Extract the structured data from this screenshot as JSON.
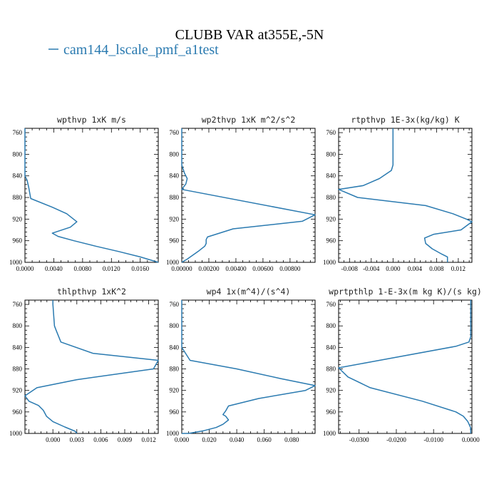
{
  "figure": {
    "title": "CLUBB VAR at355E,-5N",
    "legend_label": "cam144_lscale_pmf_a1test",
    "line_color": "#2a7ab0"
  },
  "chart_data": [
    {
      "type": "line",
      "title": "wpthvp  1xK m/s",
      "xlim": [
        0,
        0.0185
      ],
      "ylim": [
        1000,
        752
      ],
      "xticks": [
        0.0,
        0.004,
        0.008,
        0.012,
        0.016
      ],
      "xtick_labels": [
        "0.0000",
        "0.0040",
        "0.0080",
        "0.0120",
        "0.0160"
      ],
      "yticks": [
        760,
        800,
        840,
        880,
        920,
        960,
        1000
      ],
      "series": [
        {
          "x": [
            0.0,
            0.0,
            0.0,
            0.0,
            0.0003,
            0.0005,
            0.0008,
            0.0038,
            0.0058,
            0.0072,
            0.0063,
            0.0038,
            0.0046,
            0.0068,
            0.0098,
            0.013,
            0.016,
            0.0185
          ],
          "y": [
            752,
            790,
            820,
            840,
            848,
            860,
            882,
            898,
            910,
            925,
            935,
            946,
            952,
            960,
            970,
            980,
            990,
            1000
          ]
        }
      ]
    },
    {
      "type": "line",
      "title": "wp2thvp  1xK m^2/s^2",
      "xlim": [
        0,
        0.00985
      ],
      "ylim": [
        1000,
        752
      ],
      "xticks": [
        0.0,
        0.002,
        0.004,
        0.006,
        0.008
      ],
      "xtick_labels": [
        "0.00000",
        "0.00200",
        "0.00400",
        "0.00600",
        "0.00800"
      ],
      "yticks": [
        760,
        800,
        840,
        880,
        920,
        960,
        1000
      ],
      "series": [
        {
          "x": [
            0.0,
            0.0,
            0.0,
            0.0002,
            0.0004,
            0.0003,
            0.0,
            0.00985,
            0.0089,
            0.0038,
            0.0019,
            0.0018,
            0.0018,
            0.0017,
            0.0012,
            0.0008,
            0.0004,
            0.0
          ],
          "y": [
            752,
            790,
            820,
            835,
            845,
            855,
            865,
            912,
            924,
            938,
            953,
            958,
            965,
            970,
            980,
            987,
            994,
            1000
          ]
        }
      ]
    },
    {
      "type": "line",
      "title": "rtpthvp  1E-3x(kg/kg) K",
      "xlim": [
        -0.01,
        0.0145
      ],
      "ylim": [
        1000,
        752
      ],
      "xticks": [
        -0.008,
        -0.004,
        0.0,
        0.004,
        0.008,
        0.012
      ],
      "xtick_labels": [
        "-0.008",
        "-0.004",
        "0.000",
        "0.004",
        "0.008",
        "0.012"
      ],
      "yticks": [
        760,
        800,
        840,
        880,
        920,
        960,
        1000
      ],
      "series": [
        {
          "x": [
            0.0,
            0.0,
            0.0,
            -0.0003,
            -0.0025,
            -0.0055,
            -0.01,
            -0.0065,
            0.006,
            0.011,
            0.0135,
            0.0145,
            0.0125,
            0.0075,
            0.0058,
            0.006,
            0.0072,
            0.009,
            0.01,
            0.01
          ],
          "y": [
            752,
            790,
            820,
            830,
            845,
            858,
            865,
            880,
            895,
            910,
            920,
            925,
            940,
            948,
            955,
            965,
            975,
            985,
            990,
            1000
          ]
        }
      ]
    },
    {
      "type": "line",
      "title": "thlpthvp  1xK^2",
      "xlim": [
        -0.0035,
        0.0132
      ],
      "ylim": [
        1000,
        752
      ],
      "xticks": [
        0.0,
        0.003,
        0.006,
        0.009,
        0.012
      ],
      "xtick_labels": [
        "0.000",
        "0.003",
        "0.006",
        "0.009",
        "0.012"
      ],
      "yticks": [
        760,
        800,
        840,
        880,
        920,
        960,
        1000
      ],
      "series": [
        {
          "x": [
            0.0,
            0.0,
            0.0002,
            0.0004,
            0.001,
            0.005,
            0.0132,
            0.0126,
            0.003,
            -0.002,
            -0.0035,
            -0.003,
            -0.0018,
            -0.0012,
            -0.0008,
            0.0,
            0.0015,
            0.0028,
            0.003
          ],
          "y": [
            752,
            760,
            800,
            808,
            830,
            851,
            864,
            880,
            900,
            915,
            930,
            940,
            948,
            957,
            968,
            978,
            988,
            996,
            1000
          ]
        }
      ]
    },
    {
      "type": "line",
      "title": "wp4  1x(m^4)/(s^4)",
      "xlim": [
        0,
        0.097
      ],
      "ylim": [
        1000,
        752
      ],
      "xticks": [
        0.0,
        0.02,
        0.04,
        0.06,
        0.08
      ],
      "xtick_labels": [
        "0.000",
        "0.020",
        "0.040",
        "0.060",
        "0.080"
      ],
      "yticks": [
        760,
        800,
        840,
        880,
        920,
        960,
        1000
      ],
      "series": [
        {
          "x": [
            0.0,
            0.0,
            0.0,
            0.0,
            0.006,
            0.04,
            0.072,
            0.097,
            0.09,
            0.056,
            0.034,
            0.032,
            0.03,
            0.032,
            0.034,
            0.03,
            0.025,
            0.016,
            0.005,
            0.0
          ],
          "y": [
            752,
            790,
            820,
            840,
            864,
            880,
            898,
            911,
            920,
            935,
            949,
            958,
            965,
            968,
            975,
            983,
            989,
            995,
            1000,
            1000
          ]
        }
      ]
    },
    {
      "type": "line",
      "title": "wprtpthlp  1-E-3x(m kg K)/(s kg)",
      "xlim": [
        -0.0355,
        0.0003
      ],
      "ylim": [
        1000,
        752
      ],
      "xticks": [
        -0.03,
        -0.02,
        -0.01,
        0.0
      ],
      "xtick_labels": [
        "-0.0300",
        "-0.0200",
        "-0.0100",
        "0.0000"
      ],
      "yticks": [
        760,
        800,
        840,
        880,
        920,
        960,
        1000
      ],
      "series": [
        {
          "x": [
            0.0,
            0.0,
            0.0,
            -0.0005,
            -0.004,
            -0.0355,
            -0.033,
            -0.027,
            -0.013,
            -0.004,
            -0.002,
            -0.0008,
            0.0,
            0.0
          ],
          "y": [
            752,
            790,
            820,
            830,
            838,
            878,
            895,
            915,
            940,
            960,
            968,
            978,
            990,
            1000
          ]
        }
      ]
    }
  ]
}
